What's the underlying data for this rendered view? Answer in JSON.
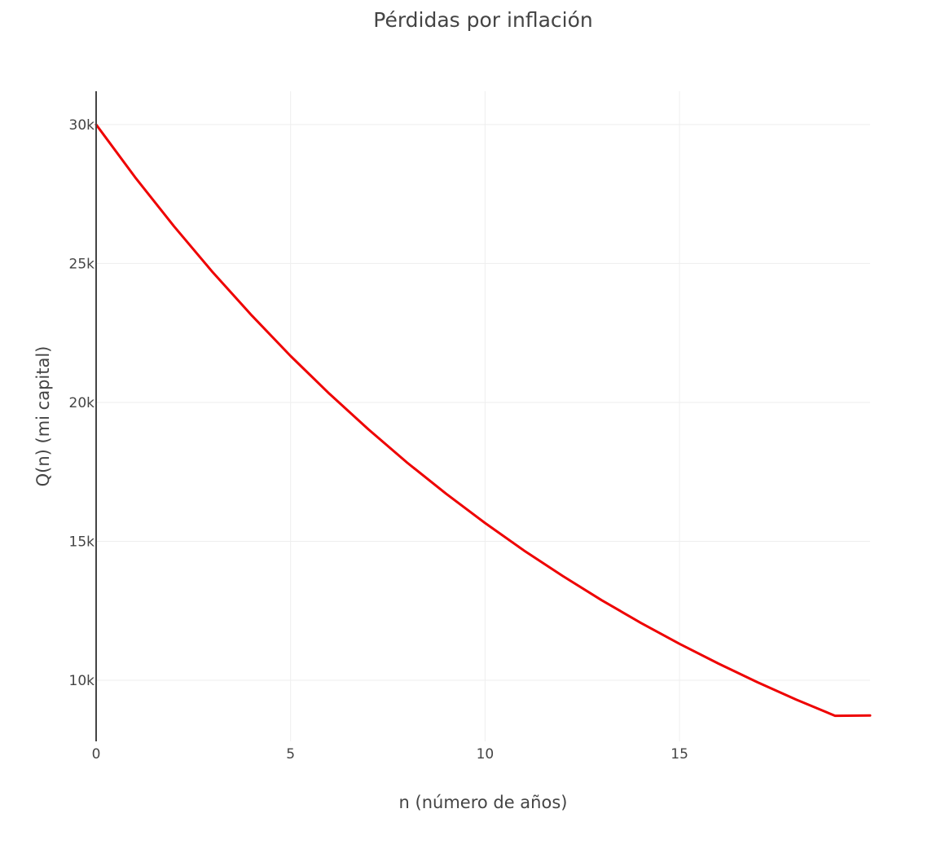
{
  "chart_data": {
    "type": "line",
    "title": "Pérdidas por inflación",
    "xlabel": "n (número de años)",
    "ylabel": "Q(n) (mi capital)",
    "xlim": [
      0,
      19.9
    ],
    "ylim": [
      7800,
      31200
    ],
    "x_ticks": [
      0,
      5,
      10,
      15
    ],
    "x_tick_labels": [
      "0",
      "5",
      "10",
      "15"
    ],
    "y_ticks": [
      10000,
      15000,
      20000,
      25000,
      30000
    ],
    "y_tick_labels": [
      "10k",
      "15k",
      "20k",
      "25k",
      "30k"
    ],
    "grid": true,
    "legend": "none",
    "series": [
      {
        "color": "#ee0000",
        "x": [
          0,
          1,
          2,
          3,
          4,
          5,
          6,
          7,
          8,
          9,
          10,
          11,
          12,
          13,
          14,
          15,
          16,
          17,
          18,
          19,
          19.9
        ],
        "y": [
          30000,
          28110,
          26340,
          24680,
          23130,
          21670,
          20310,
          19030,
          17830,
          16710,
          15660,
          14670,
          13750,
          12880,
          12070,
          11310,
          10600,
          9930,
          9300,
          8720,
          8730
        ]
      }
    ]
  }
}
